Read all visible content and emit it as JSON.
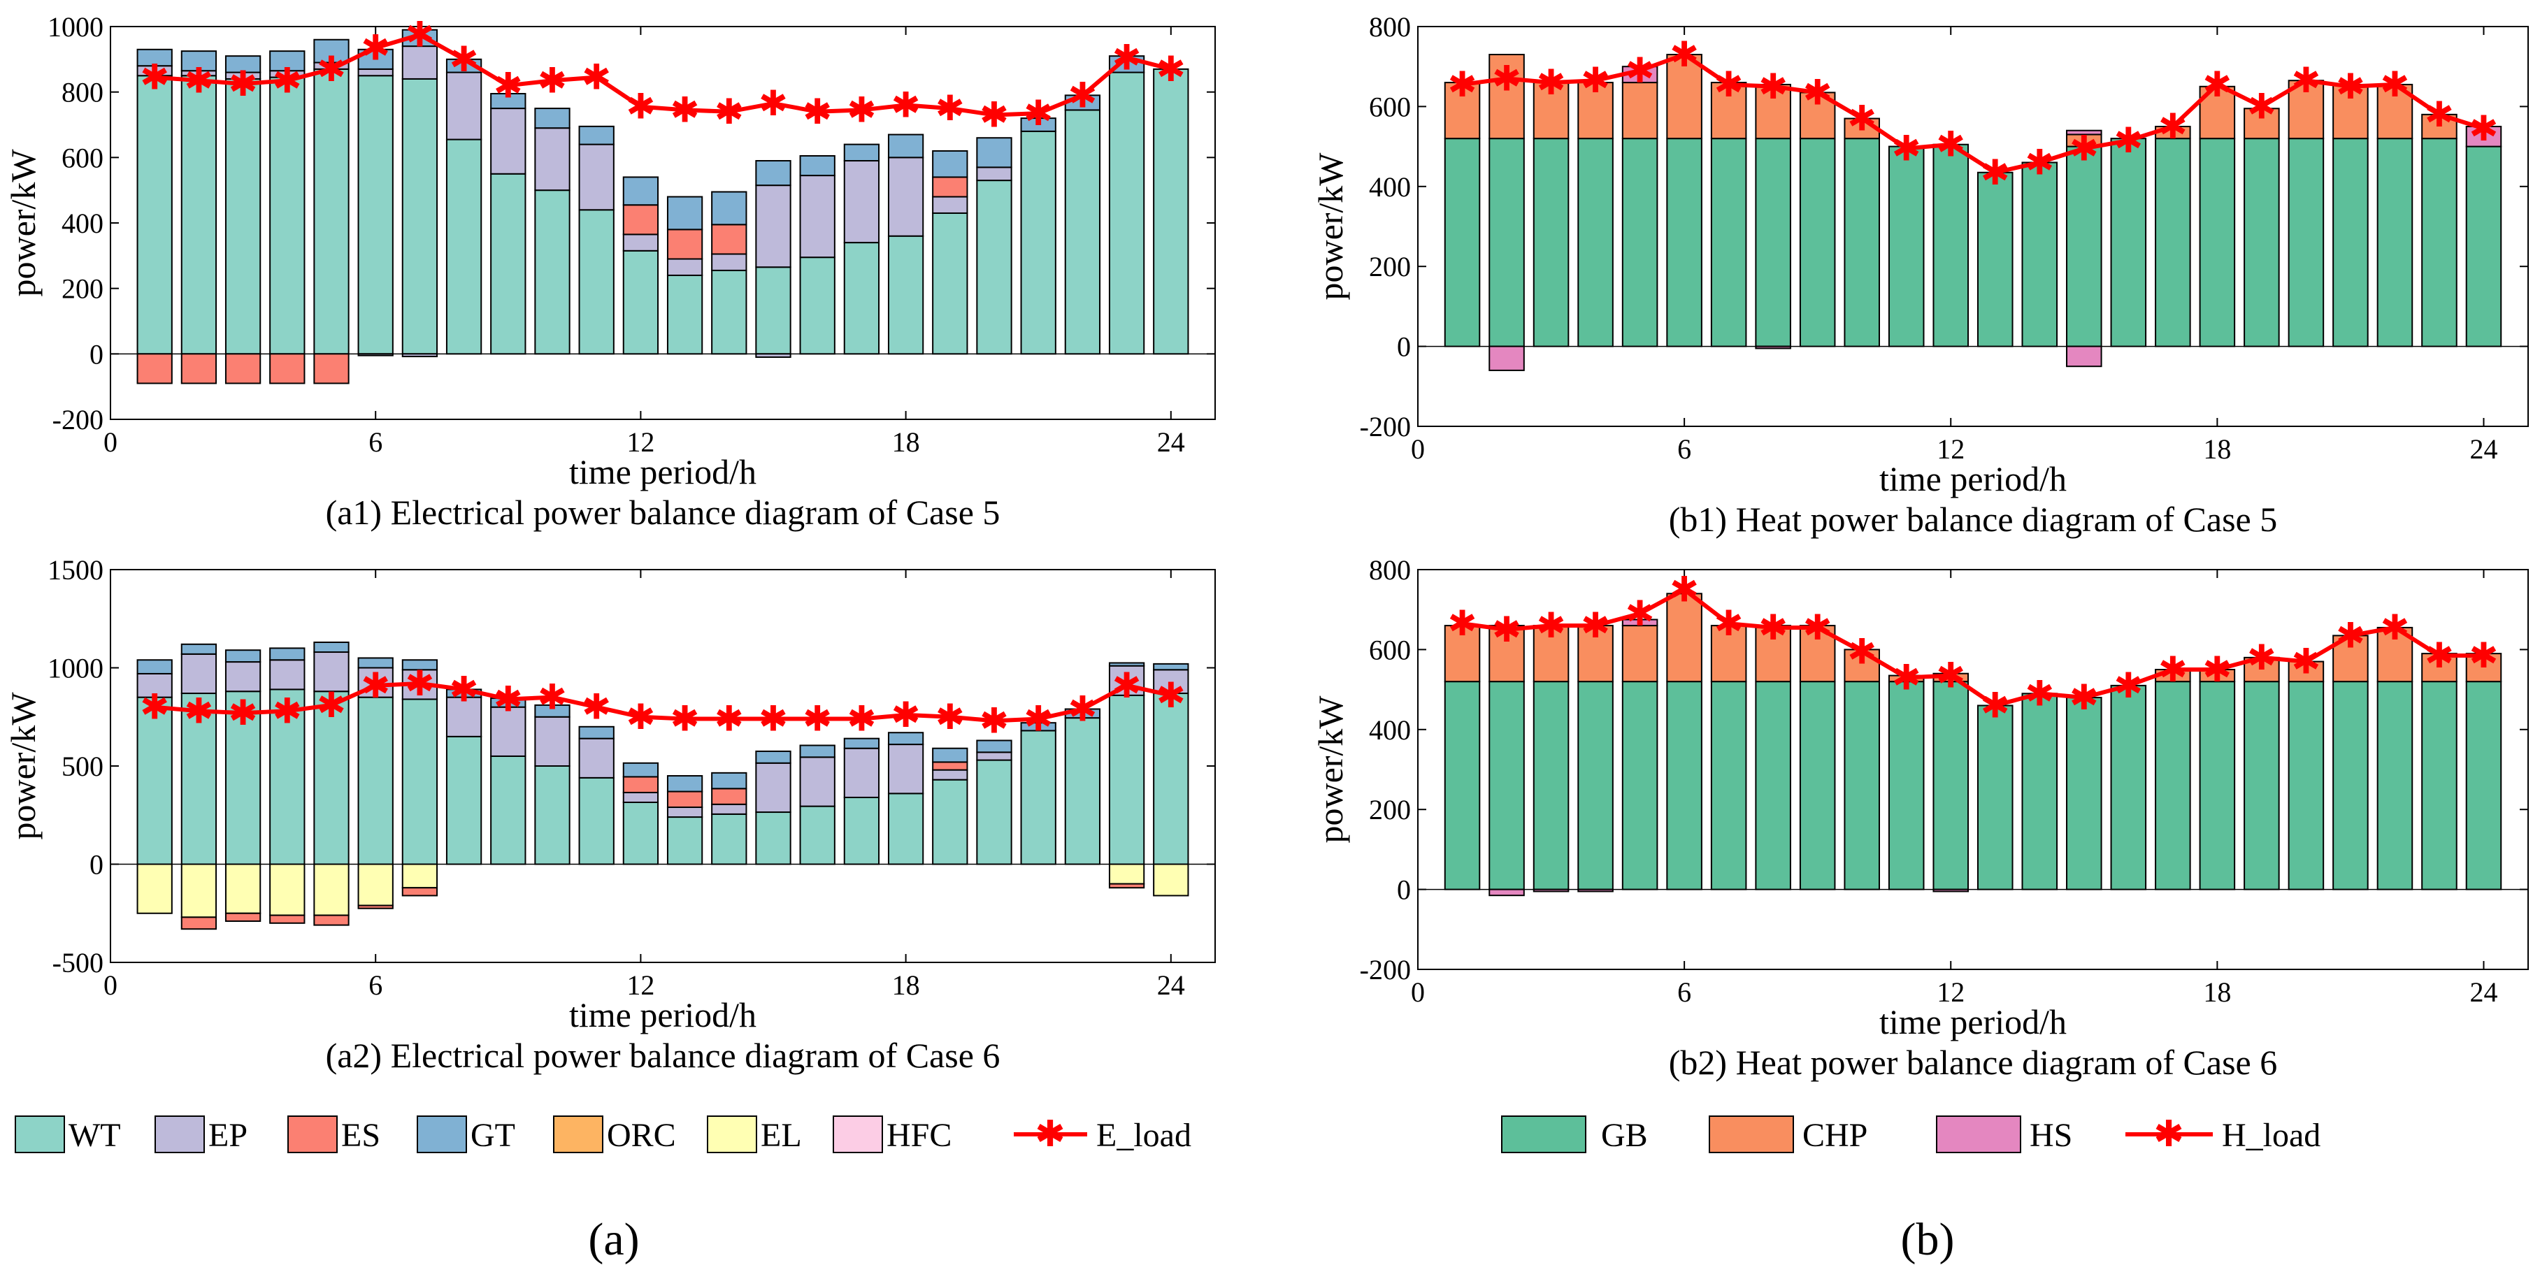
{
  "figure": {
    "label_a": "(a)",
    "label_b": "(b)"
  },
  "colors": {
    "WT": "#8dd3c7",
    "EP": "#bebada",
    "ES": "#fb8072",
    "GT": "#80b1d3",
    "ORC": "#fdb462",
    "EL": "#ffffb3",
    "HFC": "#fccde5",
    "GB": "#5dbf9a",
    "CHP": "#f98e5f",
    "HS": "#e487c0",
    "load": "#ff0000"
  },
  "chart_data": [
    {
      "id": "a1",
      "type": "bar",
      "subtitle": "(a1) Electrical power balance diagram of Case 5",
      "xlabel": "time period/h",
      "ylabel": "power/kW",
      "xlim": [
        0,
        25
      ],
      "ylim": [
        -200,
        1000
      ],
      "xticks": [
        0,
        6,
        12,
        18,
        24
      ],
      "yticks": [
        -200,
        0,
        200,
        400,
        600,
        800,
        1000
      ],
      "x": [
        1,
        2,
        3,
        4,
        5,
        6,
        7,
        8,
        9,
        10,
        11,
        12,
        13,
        14,
        15,
        16,
        17,
        18,
        19,
        20,
        21,
        22,
        23,
        24
      ],
      "series": [
        {
          "name": "WT",
          "values": [
            850,
            850,
            840,
            845,
            870,
            850,
            840,
            655,
            550,
            500,
            440,
            315,
            240,
            255,
            265,
            295,
            340,
            360,
            430,
            530,
            680,
            745,
            860,
            870
          ]
        },
        {
          "name": "EP",
          "values": [
            30,
            15,
            20,
            20,
            20,
            20,
            100,
            205,
            200,
            190,
            200,
            50,
            50,
            50,
            250,
            250,
            250,
            240,
            50,
            40,
            0,
            0,
            0,
            0
          ]
        },
        {
          "name": "ES",
          "values": [
            0,
            0,
            0,
            0,
            0,
            0,
            0,
            0,
            0,
            0,
            0,
            90,
            90,
            90,
            0,
            0,
            0,
            0,
            60,
            0,
            0,
            0,
            0,
            0
          ]
        },
        {
          "name": "GT",
          "values": [
            50,
            60,
            50,
            60,
            70,
            60,
            50,
            40,
            45,
            60,
            55,
            85,
            100,
            100,
            75,
            60,
            50,
            70,
            80,
            90,
            40,
            45,
            50,
            0
          ]
        },
        {
          "name": "ORC",
          "values": [
            0,
            0,
            0,
            0,
            0,
            0,
            0,
            0,
            0,
            0,
            0,
            0,
            0,
            0,
            0,
            0,
            0,
            0,
            0,
            0,
            0,
            0,
            0,
            0
          ]
        },
        {
          "name": "EL",
          "values": [
            0,
            0,
            0,
            0,
            0,
            0,
            0,
            0,
            0,
            0,
            0,
            0,
            0,
            0,
            0,
            0,
            0,
            0,
            0,
            0,
            0,
            0,
            0,
            0
          ]
        },
        {
          "name": "HFC",
          "values": [
            0,
            0,
            0,
            0,
            0,
            0,
            0,
            0,
            0,
            0,
            0,
            0,
            0,
            0,
            0,
            0,
            0,
            0,
            0,
            0,
            0,
            0,
            0,
            0
          ]
        }
      ],
      "orc_top": [
        0,
        0,
        0,
        0,
        0,
        0,
        0,
        0,
        0,
        0,
        0,
        0,
        0,
        0,
        0,
        0,
        0,
        0,
        0,
        0,
        0,
        0,
        0,
        0
      ],
      "negative": [
        {
          "name": "ES",
          "values": [
            -90,
            -90,
            -90,
            -90,
            -90,
            0,
            0,
            0,
            0,
            0,
            0,
            0,
            0,
            0,
            0,
            0,
            0,
            0,
            0,
            0,
            0,
            0,
            0,
            0
          ]
        },
        {
          "name": "EP",
          "values": [
            0,
            0,
            0,
            0,
            0,
            -5,
            -8,
            0,
            0,
            0,
            0,
            0,
            0,
            0,
            -10,
            0,
            0,
            0,
            0,
            0,
            0,
            0,
            0,
            0
          ]
        }
      ],
      "load": {
        "name": "E_load",
        "values": [
          845,
          835,
          825,
          835,
          870,
          935,
          975,
          900,
          820,
          835,
          845,
          755,
          745,
          740,
          765,
          740,
          745,
          760,
          750,
          730,
          735,
          790,
          905,
          870
        ]
      }
    },
    {
      "id": "a2",
      "type": "bar",
      "subtitle": "(a2) Electrical power balance diagram of Case 6",
      "xlabel": "time period/h",
      "ylabel": "power/kW",
      "xlim": [
        0,
        25
      ],
      "ylim": [
        -500,
        1500
      ],
      "xticks": [
        0,
        6,
        12,
        18,
        24
      ],
      "yticks": [
        -500,
        0,
        500,
        1000,
        1500
      ],
      "x": [
        1,
        2,
        3,
        4,
        5,
        6,
        7,
        8,
        9,
        10,
        11,
        12,
        13,
        14,
        15,
        16,
        17,
        18,
        19,
        20,
        21,
        22,
        23,
        24
      ],
      "series": [
        {
          "name": "WT",
          "values": [
            850,
            870,
            880,
            890,
            880,
            850,
            840,
            650,
            550,
            500,
            440,
            315,
            240,
            255,
            265,
            295,
            340,
            360,
            430,
            530,
            680,
            745,
            860,
            870
          ]
        },
        {
          "name": "EP",
          "values": [
            120,
            200,
            150,
            150,
            200,
            150,
            150,
            200,
            250,
            250,
            200,
            50,
            50,
            50,
            250,
            250,
            250,
            250,
            50,
            40,
            0,
            0,
            150,
            120
          ]
        },
        {
          "name": "ES",
          "values": [
            0,
            0,
            0,
            0,
            0,
            0,
            0,
            0,
            0,
            0,
            0,
            80,
            80,
            80,
            0,
            0,
            0,
            0,
            40,
            0,
            0,
            0,
            0,
            0
          ]
        },
        {
          "name": "GT",
          "values": [
            70,
            50,
            60,
            60,
            50,
            50,
            50,
            40,
            45,
            60,
            60,
            70,
            80,
            80,
            60,
            60,
            50,
            60,
            70,
            60,
            40,
            45,
            15,
            30
          ]
        },
        {
          "name": "ORC",
          "values": [
            0,
            0,
            0,
            0,
            0,
            0,
            0,
            0,
            0,
            0,
            0,
            0,
            0,
            0,
            0,
            0,
            0,
            0,
            0,
            0,
            0,
            0,
            0,
            0
          ]
        },
        {
          "name": "EL",
          "values": [
            0,
            0,
            0,
            0,
            0,
            0,
            0,
            0,
            0,
            0,
            0,
            0,
            0,
            0,
            0,
            0,
            0,
            0,
            0,
            0,
            0,
            0,
            0,
            0
          ]
        },
        {
          "name": "HFC",
          "values": [
            0,
            0,
            0,
            0,
            0,
            0,
            0,
            0,
            0,
            0,
            0,
            0,
            0,
            0,
            0,
            0,
            0,
            0,
            0,
            0,
            0,
            0,
            0,
            0
          ]
        }
      ],
      "orc_top": [
        0,
        0,
        0,
        0,
        0,
        0,
        0,
        0,
        0,
        0,
        0,
        0,
        0,
        0,
        0,
        0,
        0,
        0,
        0,
        0,
        0,
        0,
        0,
        0
      ],
      "negative": [
        {
          "name": "EL",
          "values": [
            -250,
            -270,
            -250,
            -260,
            -260,
            -210,
            -120,
            0,
            0,
            0,
            0,
            0,
            0,
            0,
            0,
            0,
            0,
            0,
            0,
            0,
            0,
            0,
            -100,
            -160
          ]
        },
        {
          "name": "ES",
          "values": [
            0,
            -60,
            -40,
            -40,
            -50,
            -15,
            -40,
            0,
            0,
            0,
            0,
            0,
            0,
            0,
            0,
            0,
            0,
            0,
            0,
            0,
            0,
            0,
            -20,
            0
          ]
        }
      ],
      "load": {
        "name": "E_load",
        "values": [
          800,
          780,
          770,
          780,
          810,
          910,
          920,
          890,
          840,
          850,
          800,
          750,
          740,
          740,
          740,
          740,
          740,
          760,
          750,
          730,
          740,
          790,
          910,
          860
        ]
      }
    },
    {
      "id": "b1",
      "type": "bar",
      "subtitle": "(b1) Heat power balance diagram of Case 5",
      "xlabel": "time period/h",
      "ylabel": "power/kW",
      "xlim": [
        0,
        25
      ],
      "ylim": [
        -200,
        800
      ],
      "xticks": [
        0,
        6,
        12,
        18,
        24
      ],
      "yticks": [
        -200,
        0,
        200,
        400,
        600,
        800
      ],
      "x": [
        1,
        2,
        3,
        4,
        5,
        6,
        7,
        8,
        9,
        10,
        11,
        12,
        13,
        14,
        15,
        16,
        17,
        18,
        19,
        20,
        21,
        22,
        23,
        24
      ],
      "series": [
        {
          "name": "GB",
          "values": [
            520,
            520,
            520,
            520,
            520,
            520,
            520,
            520,
            520,
            520,
            500,
            505,
            435,
            460,
            500,
            520,
            520,
            520,
            520,
            520,
            520,
            520,
            520,
            500
          ]
        },
        {
          "name": "CHP",
          "values": [
            140,
            210,
            140,
            140,
            140,
            210,
            140,
            135,
            115,
            50,
            0,
            0,
            0,
            0,
            30,
            0,
            30,
            130,
            75,
            145,
            135,
            135,
            60,
            0
          ]
        },
        {
          "name": "HS",
          "values": [
            0,
            0,
            0,
            0,
            40,
            0,
            0,
            0,
            0,
            0,
            0,
            0,
            0,
            0,
            10,
            0,
            0,
            0,
            0,
            0,
            0,
            0,
            0,
            50
          ]
        }
      ],
      "negative": [
        {
          "name": "HS",
          "values": [
            0,
            -60,
            0,
            0,
            0,
            0,
            0,
            -5,
            0,
            0,
            0,
            0,
            0,
            0,
            -50,
            0,
            0,
            0,
            0,
            0,
            0,
            0,
            0,
            0
          ]
        }
      ],
      "load": {
        "name": "H_load",
        "values": [
          655,
          670,
          660,
          665,
          690,
          730,
          655,
          650,
          635,
          570,
          495,
          505,
          435,
          460,
          495,
          515,
          550,
          655,
          600,
          665,
          650,
          655,
          580,
          545
        ]
      }
    },
    {
      "id": "b2",
      "type": "bar",
      "subtitle": "(b2) Heat power balance diagram of Case 6",
      "xlabel": "time period/h",
      "ylabel": "power/kW",
      "xlim": [
        0,
        25
      ],
      "ylim": [
        -200,
        800
      ],
      "xticks": [
        0,
        6,
        12,
        18,
        24
      ],
      "yticks": [
        -200,
        0,
        200,
        400,
        600,
        800
      ],
      "x": [
        1,
        2,
        3,
        4,
        5,
        6,
        7,
        8,
        9,
        10,
        11,
        12,
        13,
        14,
        15,
        16,
        17,
        18,
        19,
        20,
        21,
        22,
        23,
        24
      ],
      "series": [
        {
          "name": "GB",
          "values": [
            520,
            520,
            520,
            520,
            520,
            520,
            520,
            520,
            520,
            520,
            520,
            520,
            460,
            490,
            480,
            510,
            520,
            520,
            520,
            520,
            520,
            520,
            520,
            520
          ]
        },
        {
          "name": "CHP",
          "values": [
            140,
            140,
            140,
            140,
            140,
            220,
            140,
            140,
            140,
            80,
            15,
            20,
            0,
            0,
            0,
            0,
            30,
            30,
            60,
            50,
            115,
            135,
            70,
            70
          ]
        },
        {
          "name": "HS",
          "values": [
            0,
            0,
            0,
            0,
            15,
            0,
            0,
            0,
            0,
            0,
            0,
            0,
            0,
            0,
            0,
            0,
            0,
            0,
            0,
            0,
            0,
            0,
            0,
            0
          ]
        }
      ],
      "negative": [
        {
          "name": "HS",
          "values": [
            0,
            -15,
            -5,
            -5,
            0,
            0,
            0,
            0,
            0,
            0,
            0,
            -5,
            0,
            0,
            0,
            0,
            0,
            0,
            0,
            0,
            0,
            0,
            0,
            0
          ]
        }
      ],
      "load": {
        "name": "H_load",
        "values": [
          665,
          650,
          660,
          660,
          690,
          750,
          665,
          655,
          655,
          595,
          530,
          535,
          460,
          490,
          480,
          510,
          550,
          550,
          580,
          570,
          635,
          655,
          585,
          585
        ]
      }
    }
  ],
  "legend_a": [
    "WT",
    "EP",
    "ES",
    "GT",
    "ORC",
    "EL",
    "HFC",
    "E_load"
  ],
  "legend_b": [
    "GB",
    "CHP",
    "HS",
    "H_load"
  ]
}
